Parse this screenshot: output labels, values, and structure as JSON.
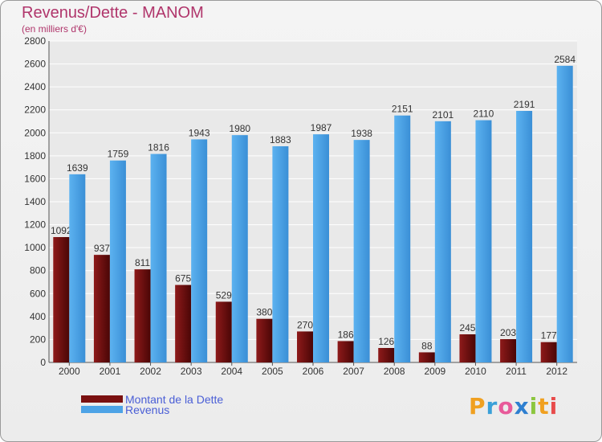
{
  "header": {
    "title": "Revenus/Dette - MANOM",
    "subtitle": "(en milliers d'€)"
  },
  "chart_data": {
    "type": "bar",
    "title": "Revenus/Dette - MANOM",
    "subtitle": "(en milliers d'€)",
    "xlabel": "",
    "ylabel": "",
    "ylim": [
      0,
      2800
    ],
    "yticks": [
      0,
      200,
      400,
      600,
      800,
      1000,
      1200,
      1400,
      1600,
      1800,
      2000,
      2200,
      2400,
      2600,
      2800
    ],
    "grid": true,
    "categories": [
      "2000",
      "2001",
      "2002",
      "2003",
      "2004",
      "2005",
      "2006",
      "2007",
      "2008",
      "2009",
      "2010",
      "2011",
      "2012"
    ],
    "series": [
      {
        "name": "Montant de la Dette",
        "color": "#7a1010",
        "values": [
          1092,
          937,
          811,
          675,
          529,
          380,
          270,
          186,
          126,
          88,
          245,
          203,
          177
        ],
        "labels": [
          "1092",
          "937",
          "811",
          "675",
          "529",
          "380",
          "270",
          "186",
          "126",
          "88",
          "245",
          "203",
          "177"
        ]
      },
      {
        "name": "Revenus",
        "color": "#4da3e6",
        "values": [
          1639,
          1759,
          1816,
          1943,
          1980,
          1883,
          1987,
          1938,
          2151,
          2101,
          2110,
          2191,
          2584
        ],
        "labels": [
          "1639",
          "1759",
          "1816",
          "1943",
          "1980",
          "1883",
          "1987",
          "1938",
          "2151",
          "2101",
          "2110",
          "2191",
          "2584"
        ]
      }
    ],
    "legend_position": "bottom-left"
  },
  "legend": {
    "items": [
      {
        "label": "Montant de la Dette",
        "color": "#7a1010"
      },
      {
        "label": "Revenus",
        "color": "#4da3e6"
      }
    ]
  },
  "logo": {
    "letters": [
      "P",
      "r",
      "o",
      "x",
      "i",
      "t",
      "i"
    ],
    "colors": [
      "#f0a020",
      "#3aa0d8",
      "#e85a9a",
      "#2e7fd0",
      "#8cc63f",
      "#f0a020",
      "#e84b4b"
    ]
  }
}
